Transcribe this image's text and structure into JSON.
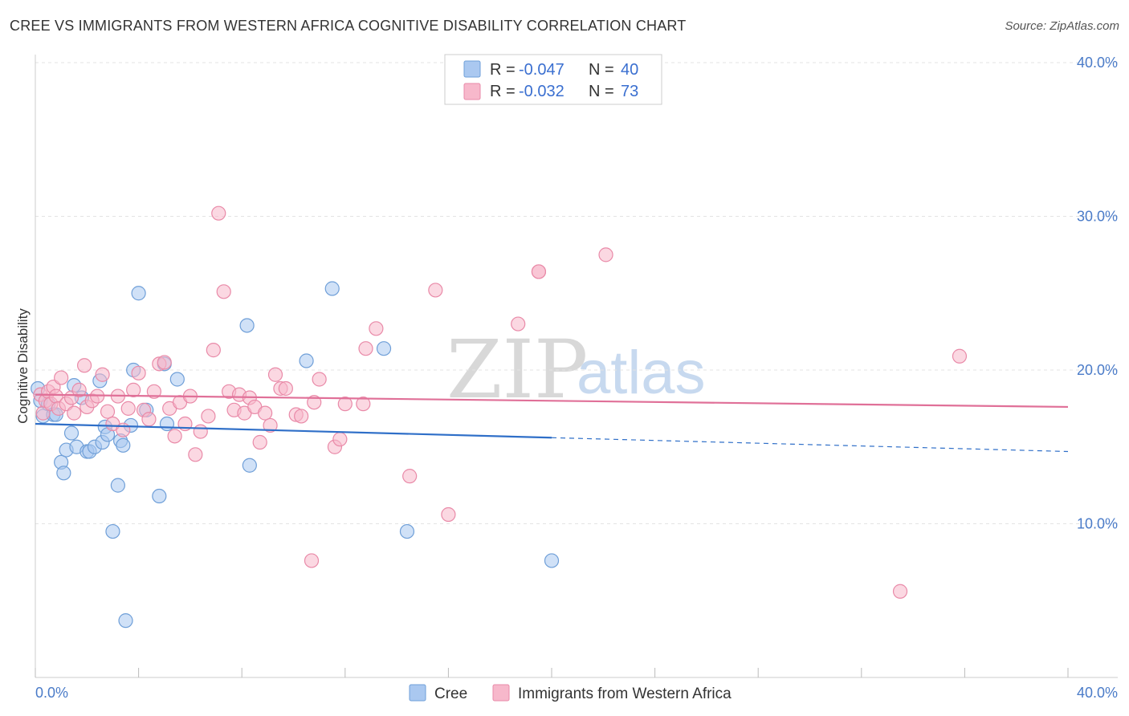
{
  "header": {
    "title": "CREE VS IMMIGRANTS FROM WESTERN AFRICA COGNITIVE DISABILITY CORRELATION CHART",
    "source": "Source: ZipAtlas.com"
  },
  "watermark": {
    "zip": "ZIP",
    "atlas": "atlas"
  },
  "legend": {
    "rows": [
      {
        "r_label": "R =",
        "r_value": "-0.047",
        "n_label": "N =",
        "n_value": "40",
        "color": "#aac8f0"
      },
      {
        "r_label": "R =",
        "r_value": "-0.032",
        "n_label": "N =",
        "n_value": "73",
        "color": "#f7b8cb"
      }
    ]
  },
  "bottom_legend": [
    {
      "label": "Cree",
      "color": "#aac8f0"
    },
    {
      "label": "Immigrants from Western Africa",
      "color": "#f7b8cb"
    }
  ],
  "chart_data": {
    "type": "scatter",
    "title": "CREE VS IMMIGRANTS FROM WESTERN AFRICA COGNITIVE DISABILITY CORRELATION CHART",
    "xlabel": "",
    "ylabel": "Cognitive Disability",
    "xlim": [
      0,
      40
    ],
    "ylim": [
      0,
      40
    ],
    "x_tick_labels": [
      "0.0%",
      "40.0%"
    ],
    "y_ticks": [
      10,
      20,
      30,
      40
    ],
    "y_tick_labels": [
      "10.0%",
      "20.0%",
      "30.0%",
      "40.0%"
    ],
    "grid": true,
    "legend_position": "top-center",
    "series": [
      {
        "name": "Cree",
        "color": "#aac8f0",
        "stroke": "#6f9fd8",
        "trend_color": "#2f6fc8",
        "trend": {
          "x0": 0,
          "y0": 16.5,
          "x1": 20,
          "y1": 15.6,
          "x_dash_end": 40,
          "y_dash_end": 14.7
        },
        "points": [
          [
            0.1,
            18.8
          ],
          [
            0.2,
            18.0
          ],
          [
            0.3,
            17.0
          ],
          [
            0.5,
            17.8
          ],
          [
            0.7,
            17.1
          ],
          [
            0.8,
            17.1
          ],
          [
            1.0,
            14.0
          ],
          [
            1.1,
            13.3
          ],
          [
            1.2,
            14.8
          ],
          [
            1.4,
            15.9
          ],
          [
            1.5,
            19.0
          ],
          [
            1.6,
            15.0
          ],
          [
            1.8,
            18.2
          ],
          [
            2.0,
            14.7
          ],
          [
            2.1,
            14.7
          ],
          [
            2.3,
            15.0
          ],
          [
            2.5,
            19.3
          ],
          [
            2.6,
            15.3
          ],
          [
            2.7,
            16.3
          ],
          [
            2.8,
            15.8
          ],
          [
            3.0,
            9.5
          ],
          [
            3.2,
            12.5
          ],
          [
            3.3,
            15.4
          ],
          [
            3.4,
            15.1
          ],
          [
            3.5,
            3.7
          ],
          [
            3.7,
            16.4
          ],
          [
            3.8,
            20.0
          ],
          [
            4.0,
            25.0
          ],
          [
            4.3,
            17.4
          ],
          [
            4.8,
            11.8
          ],
          [
            5.0,
            20.4
          ],
          [
            5.1,
            16.5
          ],
          [
            5.5,
            19.4
          ],
          [
            8.2,
            22.9
          ],
          [
            8.3,
            13.8
          ],
          [
            10.5,
            20.6
          ],
          [
            11.5,
            25.3
          ],
          [
            13.5,
            21.4
          ],
          [
            14.4,
            9.5
          ],
          [
            20.0,
            7.6
          ]
        ]
      },
      {
        "name": "Immigrants from Western Africa",
        "color": "#f7b8cb",
        "stroke": "#e98aa8",
        "trend_color": "#e07098",
        "trend": {
          "x0": 0,
          "y0": 18.4,
          "x1": 40,
          "y1": 17.6
        },
        "points": [
          [
            0.2,
            18.4
          ],
          [
            0.3,
            17.2
          ],
          [
            0.4,
            18.0
          ],
          [
            0.5,
            18.6
          ],
          [
            0.6,
            17.8
          ],
          [
            0.7,
            18.9
          ],
          [
            0.8,
            18.3
          ],
          [
            0.9,
            17.5
          ],
          [
            1.0,
            19.5
          ],
          [
            1.2,
            17.8
          ],
          [
            1.4,
            18.2
          ],
          [
            1.5,
            17.2
          ],
          [
            1.7,
            18.7
          ],
          [
            1.9,
            20.3
          ],
          [
            2.0,
            17.6
          ],
          [
            2.2,
            18.0
          ],
          [
            2.4,
            18.3
          ],
          [
            2.6,
            19.7
          ],
          [
            2.8,
            17.3
          ],
          [
            3.0,
            16.5
          ],
          [
            3.2,
            18.3
          ],
          [
            3.4,
            16.1
          ],
          [
            3.6,
            17.5
          ],
          [
            3.8,
            18.7
          ],
          [
            4.0,
            19.8
          ],
          [
            4.2,
            17.4
          ],
          [
            4.4,
            16.8
          ],
          [
            4.6,
            18.6
          ],
          [
            4.8,
            20.4
          ],
          [
            5.0,
            20.5
          ],
          [
            5.2,
            17.5
          ],
          [
            5.4,
            15.7
          ],
          [
            5.6,
            17.9
          ],
          [
            5.8,
            16.5
          ],
          [
            6.0,
            18.3
          ],
          [
            6.2,
            14.5
          ],
          [
            6.4,
            16.0
          ],
          [
            6.7,
            17.0
          ],
          [
            6.9,
            21.3
          ],
          [
            7.1,
            30.2
          ],
          [
            7.3,
            25.1
          ],
          [
            7.5,
            18.6
          ],
          [
            7.7,
            17.4
          ],
          [
            7.9,
            18.4
          ],
          [
            8.1,
            17.2
          ],
          [
            8.3,
            18.2
          ],
          [
            8.5,
            17.6
          ],
          [
            8.7,
            15.3
          ],
          [
            8.9,
            17.2
          ],
          [
            9.1,
            16.4
          ],
          [
            9.3,
            19.7
          ],
          [
            9.5,
            18.8
          ],
          [
            9.7,
            18.8
          ],
          [
            10.1,
            17.1
          ],
          [
            10.3,
            17.0
          ],
          [
            10.7,
            7.6
          ],
          [
            10.8,
            17.9
          ],
          [
            11.0,
            19.4
          ],
          [
            11.6,
            15.0
          ],
          [
            11.8,
            15.5
          ],
          [
            12.0,
            17.8
          ],
          [
            12.7,
            17.8
          ],
          [
            12.8,
            21.4
          ],
          [
            13.2,
            22.7
          ],
          [
            14.5,
            13.1
          ],
          [
            15.5,
            25.2
          ],
          [
            16.0,
            10.6
          ],
          [
            18.7,
            23.0
          ],
          [
            19.5,
            26.4
          ],
          [
            22.1,
            27.5
          ],
          [
            33.5,
            5.6
          ],
          [
            35.8,
            20.9
          ],
          [
            19.5,
            26.4
          ]
        ]
      }
    ]
  }
}
